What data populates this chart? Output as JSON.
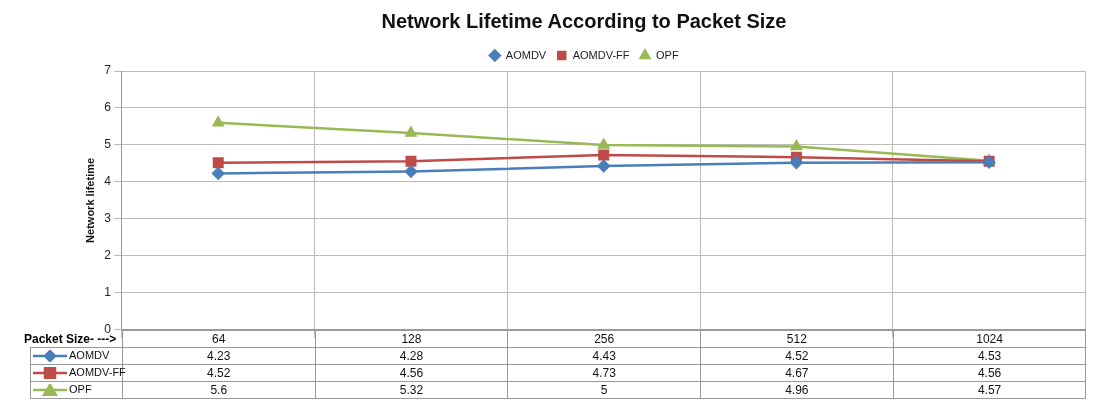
{
  "chart_data": {
    "type": "line",
    "title": "Network Lifetime According to Packet Size",
    "xlabel": "Packet Size-  --->",
    "ylabel": "Network lifetime",
    "categories": [
      "64",
      "128",
      "256",
      "512",
      "1024"
    ],
    "series": [
      {
        "name": "AOMDV",
        "color": "#4a7ebb",
        "marker": "diamond",
        "values": [
          4.23,
          4.28,
          4.43,
          4.52,
          4.53
        ]
      },
      {
        "name": "AOMDV-FF",
        "color": "#be4b48",
        "marker": "square",
        "values": [
          4.52,
          4.56,
          4.73,
          4.67,
          4.56
        ]
      },
      {
        "name": "OPF",
        "color": "#98b954",
        "marker": "triangle",
        "values": [
          5.6,
          5.32,
          5,
          4.96,
          4.57
        ]
      }
    ],
    "ylim": [
      0,
      7
    ],
    "yticks": [
      0,
      1,
      2,
      3,
      4,
      5,
      6,
      7
    ],
    "grid": true,
    "legend": "top",
    "data_labels": true,
    "line_style": "solid"
  }
}
